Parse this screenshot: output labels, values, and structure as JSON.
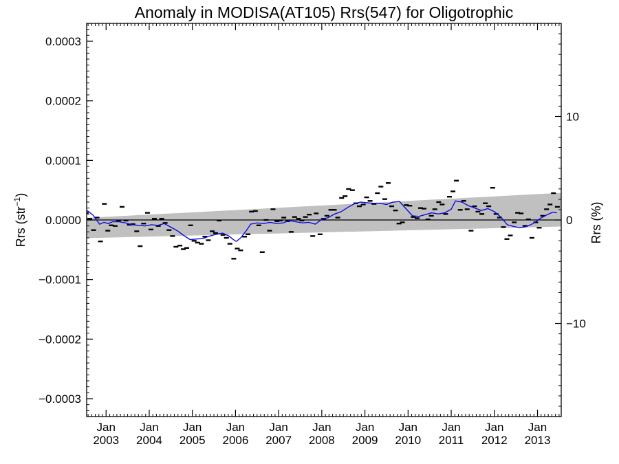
{
  "chart_data": {
    "type": "line",
    "title": "Anomaly in MODISA(AT105) Rrs(547) for Oligotrophic",
    "ylabel_left": {
      "text": "Rrs (str",
      "sup": "−1",
      "close": ")"
    },
    "ylabel_right": "Rrs (%)",
    "ylim_left": [
      -0.00033,
      0.00033
    ],
    "ylim_right": [
      -19,
      19
    ],
    "xlim": [
      2002.55,
      2013.55
    ],
    "y_ticks_left": [
      {
        "value": 0.0003,
        "label": "0.0003"
      },
      {
        "value": 0.0002,
        "label": "0.0002"
      },
      {
        "value": 0.0001,
        "label": "0.0001"
      },
      {
        "value": 0.0,
        "label": "0.0000"
      },
      {
        "value": -0.0001,
        "label": "−0.0001"
      },
      {
        "value": -0.0002,
        "label": "−0.0002"
      },
      {
        "value": -0.0003,
        "label": "−0.0003"
      }
    ],
    "y_ticks_right": [
      {
        "value": 10,
        "label": "10"
      },
      {
        "value": 0,
        "label": "0"
      },
      {
        "value": -10,
        "label": "−10"
      }
    ],
    "x_ticks": [
      {
        "value": 2003.0,
        "month": "Jan",
        "year": "2003"
      },
      {
        "value": 2004.0,
        "month": "Jan",
        "year": "2004"
      },
      {
        "value": 2005.0,
        "month": "Jan",
        "year": "2005"
      },
      {
        "value": 2006.0,
        "month": "Jan",
        "year": "2006"
      },
      {
        "value": 2007.0,
        "month": "Jan",
        "year": "2007"
      },
      {
        "value": 2008.0,
        "month": "Jan",
        "year": "2008"
      },
      {
        "value": 2009.0,
        "month": "Jan",
        "year": "2009"
      },
      {
        "value": 2010.0,
        "month": "Jan",
        "year": "2010"
      },
      {
        "value": 2011.0,
        "month": "Jan",
        "year": "2011"
      },
      {
        "value": 2012.0,
        "month": "Jan",
        "year": "2012"
      },
      {
        "value": 2013.0,
        "month": "Jan",
        "year": "2013"
      }
    ],
    "trend_band": {
      "upper": [
        [
          2002.55,
          3.5e-06
        ],
        [
          2013.55,
          4.55e-05
        ]
      ],
      "lower": [
        [
          2002.55,
          -3.05e-05
        ],
        [
          2013.55,
          -1.1e-05
        ]
      ]
    },
    "monthly_anomalies": {
      "x": [
        2002.54,
        2002.62,
        2002.71,
        2002.79,
        2002.87,
        2002.96,
        2003.04,
        2003.12,
        2003.21,
        2003.29,
        2003.37,
        2003.46,
        2003.54,
        2003.62,
        2003.71,
        2003.79,
        2003.87,
        2003.96,
        2004.04,
        2004.12,
        2004.21,
        2004.29,
        2004.37,
        2004.46,
        2004.54,
        2004.62,
        2004.71,
        2004.79,
        2004.87,
        2004.96,
        2005.04,
        2005.12,
        2005.21,
        2005.29,
        2005.37,
        2005.46,
        2005.54,
        2005.62,
        2005.71,
        2005.79,
        2005.87,
        2005.96,
        2006.04,
        2006.12,
        2006.21,
        2006.29,
        2006.37,
        2006.46,
        2006.54,
        2006.62,
        2006.71,
        2006.79,
        2006.87,
        2006.96,
        2007.04,
        2007.12,
        2007.21,
        2007.29,
        2007.37,
        2007.46,
        2007.54,
        2007.62,
        2007.71,
        2007.79,
        2007.87,
        2007.96,
        2008.04,
        2008.12,
        2008.21,
        2008.29,
        2008.37,
        2008.46,
        2008.54,
        2008.62,
        2008.71,
        2008.79,
        2008.87,
        2008.96,
        2009.04,
        2009.12,
        2009.21,
        2009.29,
        2009.37,
        2009.46,
        2009.54,
        2009.62,
        2009.71,
        2009.79,
        2009.87,
        2009.96,
        2010.04,
        2010.12,
        2010.21,
        2010.29,
        2010.37,
        2010.46,
        2010.54,
        2010.62,
        2010.71,
        2010.79,
        2010.87,
        2010.96,
        2011.04,
        2011.12,
        2011.21,
        2011.29,
        2011.37,
        2011.46,
        2011.54,
        2011.62,
        2011.71,
        2011.79,
        2011.87,
        2011.96,
        2012.04,
        2012.12,
        2012.21,
        2012.29,
        2012.37,
        2012.46,
        2012.54,
        2012.62,
        2012.71,
        2012.79,
        2012.87,
        2012.96,
        2013.04,
        2013.12,
        2013.21,
        2013.29,
        2013.37,
        2013.46
      ],
      "y": [
        1.2e-05,
        2e-06,
        -1.7e-05,
        4e-06,
        -3.6e-05,
        2.7e-05,
        -1.8e-05,
        -9e-06,
        -1e-05,
        -1e-06,
        2.2e-05,
        -1e-06,
        -8e-06,
        -7e-06,
        -1.9e-05,
        -4.4e-05,
        -6e-06,
        1.2e-05,
        -1.6e-05,
        2e-06,
        -1e-05,
        2e-06,
        -5e-06,
        -1.7e-05,
        -2.7e-05,
        -4.5e-05,
        -4.3e-05,
        -4.9e-05,
        -4.7e-05,
        -9e-06,
        -3.5e-05,
        -3.8e-05,
        -4e-05,
        -2.8e-05,
        -3.4e-05,
        -1.9e-05,
        -2.2e-05,
        -1e-06,
        -2.5e-05,
        -3e-05,
        -4e-05,
        -6.5e-05,
        -4.8e-05,
        -5.1e-05,
        -2.8e-05,
        -2.4e-05,
        1.4e-05,
        1.5e-05,
        -9e-06,
        -5.4e-05,
        0.0,
        -1.8e-05,
        1.8e-05,
        -2e-06,
        -1e-06,
        4e-06,
        -2e-06,
        -2e-05,
        5e-06,
        2e-06,
        -1e-06,
        5e-06,
        9e-06,
        -2.7e-05,
        1.1e-05,
        -2.4e-05,
        2e-06,
        7e-06,
        1.7e-05,
        1.7e-05,
        4e-06,
        3.7e-05,
        4e-05,
        5.2e-05,
        5e-05,
        2.8e-05,
        2.3e-05,
        2.6e-05,
        3.8e-05,
        3.2e-05,
        2.7e-05,
        4.5e-05,
        5.6e-05,
        3.5e-05,
        6.2e-05,
        2.3e-05,
        1.6e-05,
        -6e-06,
        -4e-06,
        2.5e-05,
        2.4e-05,
        5e-06,
        3e-06,
        2e-05,
        1.9e-05,
        1e-06,
        7e-06,
        1.8e-05,
        3e-05,
        2.6e-05,
        1e-05,
        3.9e-05,
        4.8e-05,
        6.6e-05,
        1.7e-05,
        3.2e-05,
        1.8e-05,
        -1.8e-05,
        2.3e-05,
        1.4e-05,
        1e-05,
        2.8e-05,
        2.3e-05,
        5.4e-05,
        1e-05,
        4e-06,
        -1.2e-05,
        -3.2e-05,
        -2.6e-05,
        -4e-06,
        1.2e-05,
        1.1e-05,
        -1e-05,
        1e-06,
        -3e-05,
        -4e-06,
        -1.3e-05,
        7e-06,
        1.8e-05,
        2.6e-05,
        4.5e-05,
        2.2e-05
      ]
    },
    "running_mean": {
      "color": "#0a0ae6",
      "x": [
        2002.5,
        2002.6,
        2002.7,
        2002.85,
        2002.95,
        2003.05,
        2003.15,
        2003.3,
        2003.45,
        2003.6,
        2003.75,
        2003.9,
        2004.05,
        2004.2,
        2004.35,
        2004.5,
        2004.65,
        2004.8,
        2004.95,
        2005.1,
        2005.25,
        2005.4,
        2005.55,
        2005.7,
        2005.85,
        2005.95,
        2006.02,
        2006.12,
        2006.25,
        2006.35,
        2006.5,
        2006.65,
        2006.8,
        2006.95,
        2007.1,
        2007.25,
        2007.4,
        2007.55,
        2007.7,
        2007.85,
        2008.0,
        2008.15,
        2008.3,
        2008.45,
        2008.6,
        2008.75,
        2008.9,
        2009.05,
        2009.2,
        2009.35,
        2009.5,
        2009.65,
        2009.8,
        2009.95,
        2010.1,
        2010.25,
        2010.4,
        2010.55,
        2010.7,
        2010.85,
        2011.0,
        2011.1,
        2011.25,
        2011.4,
        2011.55,
        2011.7,
        2011.85,
        2012.0,
        2012.15,
        2012.3,
        2012.45,
        2012.6,
        2012.75,
        2012.9,
        2013.05,
        2013.2,
        2013.35,
        2013.45
      ],
      "y": [
        1.8e-05,
        1.4e-05,
        8e-06,
        -7e-06,
        -4e-06,
        -6e-06,
        -3e-06,
        -3e-06,
        -5e-06,
        -8e-06,
        -9e-06,
        -1e-05,
        -8e-06,
        -9e-06,
        -6e-06,
        -1.2e-05,
        -1.8e-05,
        -2.6e-05,
        -3.3e-05,
        -3.2e-05,
        -3.1e-05,
        -2.7e-05,
        -2.4e-05,
        -2.2e-05,
        -2.7e-05,
        -3.3e-05,
        -3.6e-05,
        -3e-05,
        -1.8e-05,
        -7e-06,
        -5e-06,
        -6e-06,
        -4e-06,
        -6e-06,
        -5e-06,
        -1e-06,
        -3e-06,
        -5e-06,
        -4e-06,
        -7e-06,
        1e-06,
        4e-06,
        1e-05,
        1.4e-05,
        2.1e-05,
        2.7e-05,
        3e-05,
        2.9e-05,
        2.8e-05,
        2.8e-05,
        2.6e-05,
        3e-05,
        3.1e-05,
        1.9e-05,
        7e-06,
        6e-06,
        9e-06,
        1.2e-05,
        1e-05,
        1.2e-05,
        1.8e-05,
        3.2e-05,
        3e-05,
        2.4e-05,
        2e-05,
        1.6e-05,
        1.9e-05,
        1.4e-05,
        5e-06,
        -8e-06,
        -1.1e-05,
        -1.3e-05,
        -1.1e-05,
        -6e-06,
        2e-06,
        8e-06,
        1.3e-05,
        1.2e-05
      ]
    }
  }
}
